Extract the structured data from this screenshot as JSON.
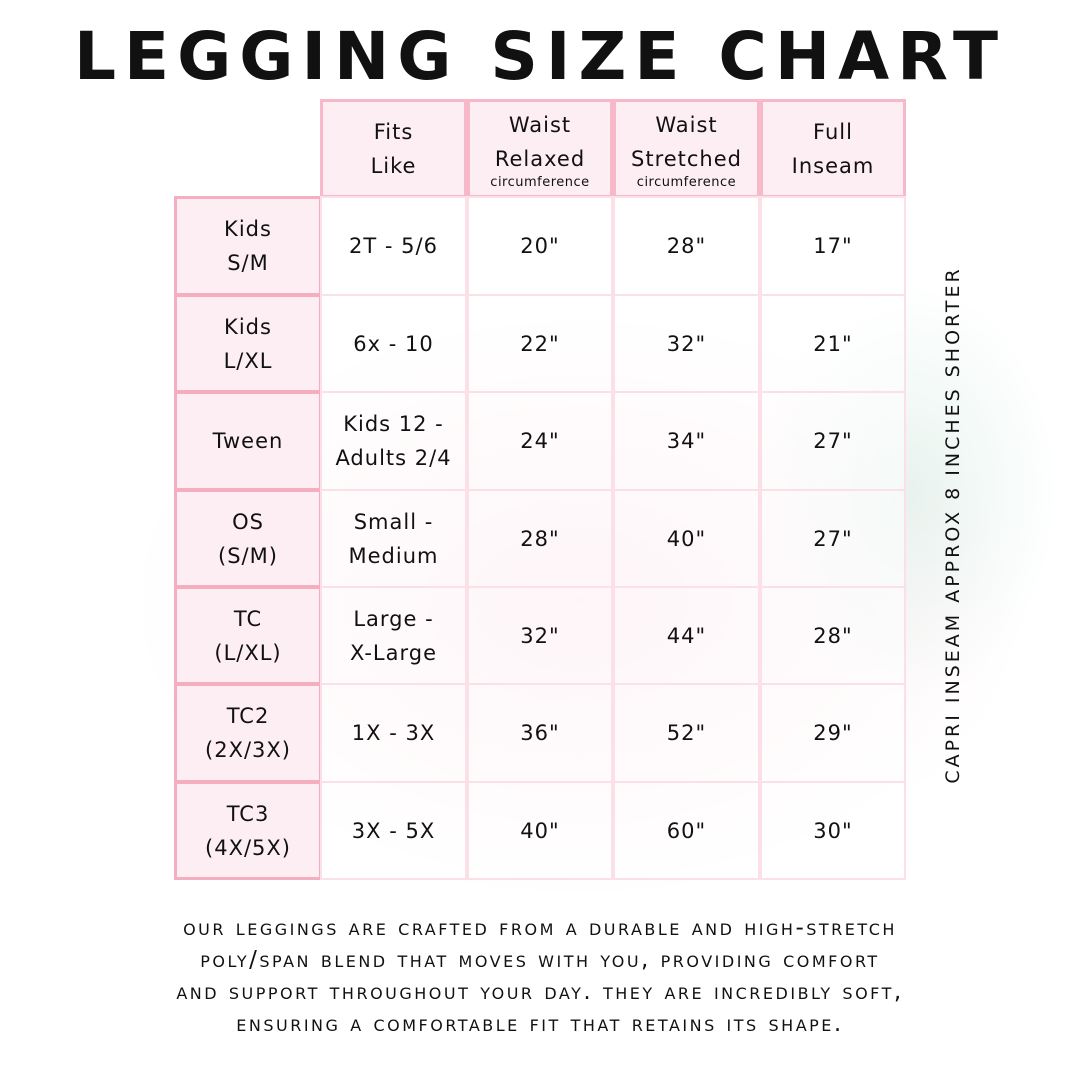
{
  "title": "LEGGING SIZE CHART",
  "headers": [
    {
      "line1": "Fits",
      "line2": "Like",
      "sub": ""
    },
    {
      "line1": "Waist",
      "line2": "Relaxed",
      "sub": "circumference"
    },
    {
      "line1": "Waist",
      "line2": "Stretched",
      "sub": "circumference"
    },
    {
      "line1": "Full",
      "line2": "Inseam",
      "sub": ""
    }
  ],
  "rows": [
    {
      "size": "Kids\nS/M",
      "fits": "2T - 5/6",
      "relaxed": "20\"",
      "stretched": "28\"",
      "inseam": "17\""
    },
    {
      "size": "Kids\nL/XL",
      "fits": "6x - 10",
      "relaxed": "22\"",
      "stretched": "32\"",
      "inseam": "21\""
    },
    {
      "size": "Tween",
      "fits": "Kids 12 -\nAdults 2/4",
      "relaxed": "24\"",
      "stretched": "34\"",
      "inseam": "27\""
    },
    {
      "size": "OS\n(S/M)",
      "fits": "Small -\nMedium",
      "relaxed": "28\"",
      "stretched": "40\"",
      "inseam": "27\""
    },
    {
      "size": "TC\n(L/XL)",
      "fits": "Large -\nX-Large",
      "relaxed": "32\"",
      "stretched": "44\"",
      "inseam": "28\""
    },
    {
      "size": "TC2\n(2X/3X)",
      "fits": "1X - 3X",
      "relaxed": "36\"",
      "stretched": "52\"",
      "inseam": "29\""
    },
    {
      "size": "TC3\n(4X/5X)",
      "fits": "3X - 5X",
      "relaxed": "40\"",
      "stretched": "60\"",
      "inseam": "30\""
    }
  ],
  "side_note": "CAPRI INSEAM APPROX 8 INCHES SHORTER",
  "footer": [
    "OUR LEGGINGS ARE CRAFTED FROM A DURABLE AND HIGH-STRETCH",
    "POLY/SPAN BLEND THAT MOVES WITH YOU, PROVIDING COMFORT",
    "AND SUPPORT THROUGHOUT YOUR DAY. THEY ARE INCREDIBLY SOFT,",
    "ENSURING A COMFORTABLE FIT THAT RETAINS ITS SHAPE."
  ],
  "colors": {
    "border": "#f5aebf",
    "header_fill": "#fdeef3"
  }
}
